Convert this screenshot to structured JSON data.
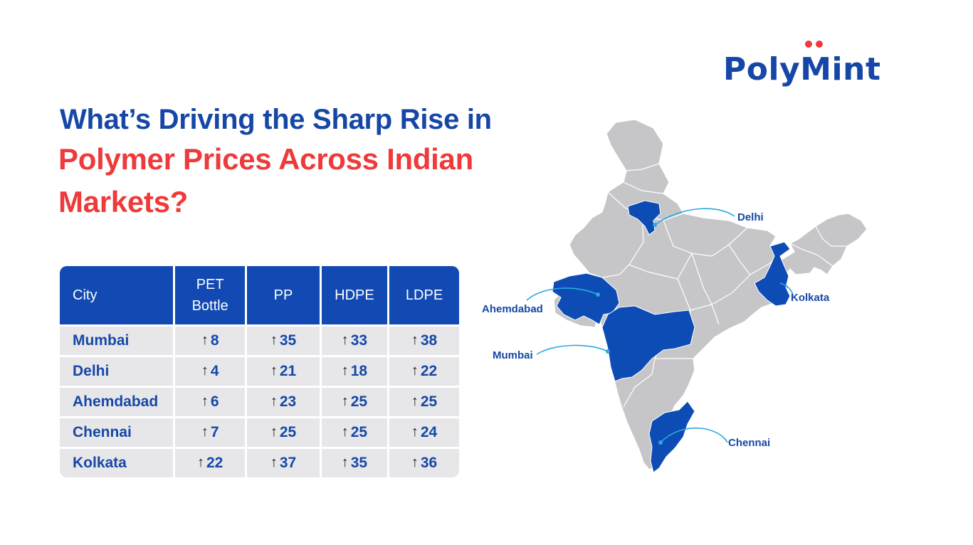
{
  "brand": {
    "prefix": "Poly",
    "suffix": "Mint",
    "colors": {
      "blue": "#1747a6",
      "red": "#ee3a3a"
    }
  },
  "headline": {
    "line1": "What’s Driving the Sharp Rise in",
    "line2": "Polymer Prices Across Indian Markets?"
  },
  "table": {
    "headers": [
      "City",
      "PET Bottle",
      "PP",
      "HDPE",
      "LDPE"
    ],
    "rows": [
      {
        "city": "Mumbai",
        "pet": "8",
        "pp": "35",
        "hdpe": "33",
        "ldpe": "38"
      },
      {
        "city": "Delhi",
        "pet": "4",
        "pp": "21",
        "hdpe": "18",
        "ldpe": "22"
      },
      {
        "city": "Ahemdabad",
        "pet": "6",
        "pp": "23",
        "hdpe": "25",
        "ldpe": "25"
      },
      {
        "city": "Chennai",
        "pet": "7",
        "pp": "25",
        "hdpe": "25",
        "ldpe": "24"
      },
      {
        "city": "Kolkata",
        "pet": "22",
        "pp": "37",
        "hdpe": "35",
        "ldpe": "36"
      }
    ],
    "trend_icon": "up-arrow-icon",
    "colors": {
      "header_bg": "#1249b2",
      "row_bg": "#e7e7ea"
    }
  },
  "map": {
    "labels": {
      "delhi": "Delhi",
      "kolkata": "Kolkata",
      "ahemdabad": "Ahemdabad",
      "mumbai": "Mumbai",
      "chennai": "Chennai"
    },
    "colors": {
      "land": "#c6c6c8",
      "highlight": "#0d4cb5",
      "leader": "#2aa9e0"
    }
  }
}
